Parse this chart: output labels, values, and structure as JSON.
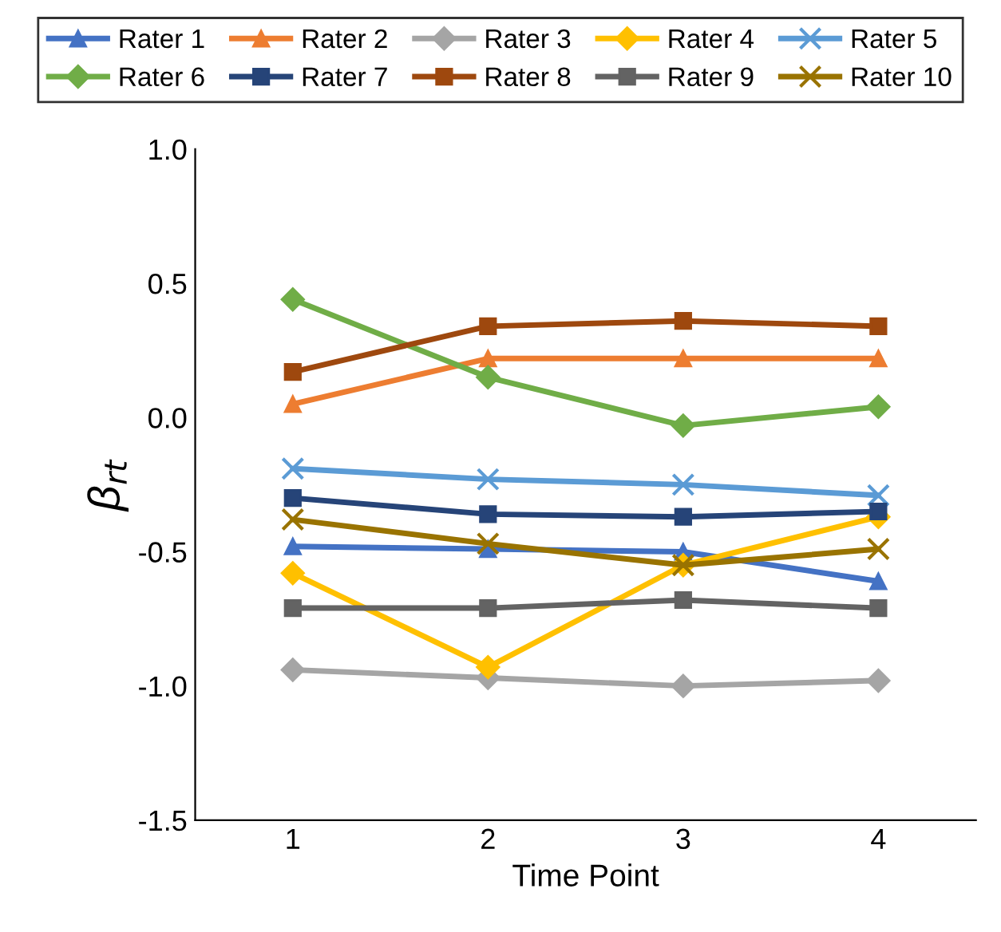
{
  "chart_data": {
    "type": "line",
    "xlabel": "Time Point",
    "ylabel": "β$_{rt}$",
    "categories": [
      "1",
      "2",
      "3",
      "4"
    ],
    "ylim": [
      -1.5,
      1.0
    ],
    "yticks": [
      {
        "value": -1.5,
        "label": "-1.5"
      },
      {
        "value": -1.0,
        "label": "-1.0"
      },
      {
        "value": -0.5,
        "label": "-0.5"
      },
      {
        "value": 0.0,
        "label": "0.0"
      },
      {
        "value": 0.5,
        "label": "0.5"
      },
      {
        "value": 1.0,
        "label": "1.0"
      }
    ],
    "grid": false,
    "legend": "top",
    "line_style": "solid",
    "series": [
      {
        "name": "Rater 1",
        "color": "#4472c4",
        "marker": "triangle",
        "values": [
          -0.48,
          -0.49,
          -0.5,
          -0.61
        ]
      },
      {
        "name": "Rater 2",
        "color": "#ed7d31",
        "marker": "triangle",
        "values": [
          0.05,
          0.22,
          0.22,
          0.22
        ]
      },
      {
        "name": "Rater 3",
        "color": "#a5a5a5",
        "marker": "diamond",
        "values": [
          -0.94,
          -0.97,
          -1.0,
          -0.98
        ]
      },
      {
        "name": "Rater 4",
        "color": "#ffc000",
        "marker": "diamond",
        "values": [
          -0.58,
          -0.93,
          -0.55,
          -0.37
        ]
      },
      {
        "name": "Rater 5",
        "color": "#5b9bd5",
        "marker": "cross",
        "values": [
          -0.19,
          -0.23,
          -0.25,
          -0.29
        ]
      },
      {
        "name": "Rater 6",
        "color": "#70ad47",
        "marker": "diamond",
        "values": [
          0.44,
          0.15,
          -0.03,
          0.04
        ]
      },
      {
        "name": "Rater 7",
        "color": "#264478",
        "marker": "square",
        "values": [
          -0.3,
          -0.36,
          -0.37,
          -0.35
        ]
      },
      {
        "name": "Rater 8",
        "color": "#9e480e",
        "marker": "square",
        "values": [
          0.17,
          0.34,
          0.36,
          0.34
        ]
      },
      {
        "name": "Rater 9",
        "color": "#636363",
        "marker": "square",
        "values": [
          -0.71,
          -0.71,
          -0.68,
          -0.71
        ]
      },
      {
        "name": "Rater 10",
        "color": "#997300",
        "marker": "cross",
        "values": [
          -0.38,
          -0.47,
          -0.55,
          -0.49
        ]
      }
    ]
  }
}
